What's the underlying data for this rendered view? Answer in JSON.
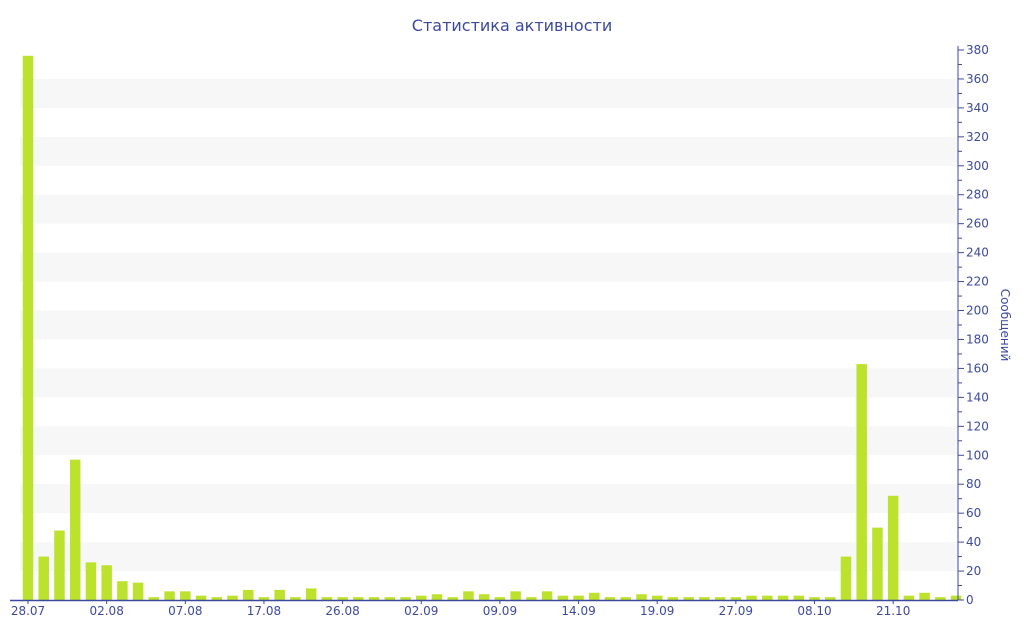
{
  "chart_data": {
    "type": "bar",
    "title": "Статистика активности",
    "ylabel": "Сообщений",
    "xlabel": "",
    "ylim": [
      0,
      380
    ],
    "y_ticks": [
      0,
      20,
      40,
      60,
      80,
      100,
      120,
      140,
      160,
      180,
      200,
      220,
      240,
      260,
      280,
      300,
      320,
      340,
      360,
      380
    ],
    "y_axis_position": "right",
    "grid": "alternating horizontal bands",
    "x_tick_labels": [
      {
        "index": 0,
        "label": "28.07"
      },
      {
        "index": 5,
        "label": "02.08"
      },
      {
        "index": 10,
        "label": "07.08"
      },
      {
        "index": 15,
        "label": "17.08"
      },
      {
        "index": 20,
        "label": "26.08"
      },
      {
        "index": 25,
        "label": "02.09"
      },
      {
        "index": 30,
        "label": "09.09"
      },
      {
        "index": 35,
        "label": "14.09"
      },
      {
        "index": 40,
        "label": "19.09"
      },
      {
        "index": 45,
        "label": "27.09"
      },
      {
        "index": 50,
        "label": "08.10"
      },
      {
        "index": 55,
        "label": "21.10"
      }
    ],
    "values": [
      376,
      30,
      48,
      97,
      26,
      24,
      13,
      12,
      2,
      6,
      6,
      3,
      2,
      3,
      7,
      2,
      7,
      2,
      8,
      2,
      2,
      2,
      2,
      2,
      2,
      3,
      4,
      2,
      6,
      4,
      2,
      6,
      2,
      6,
      3,
      3,
      5,
      2,
      2,
      4,
      3,
      2,
      2,
      2,
      2,
      2,
      3,
      3,
      3,
      3,
      2,
      2,
      30,
      163,
      50,
      72,
      3,
      5,
      2,
      3
    ],
    "colors": {
      "bar": "#bde22e",
      "axis": "#3d4a9c",
      "band": "#f7f7f7"
    }
  }
}
